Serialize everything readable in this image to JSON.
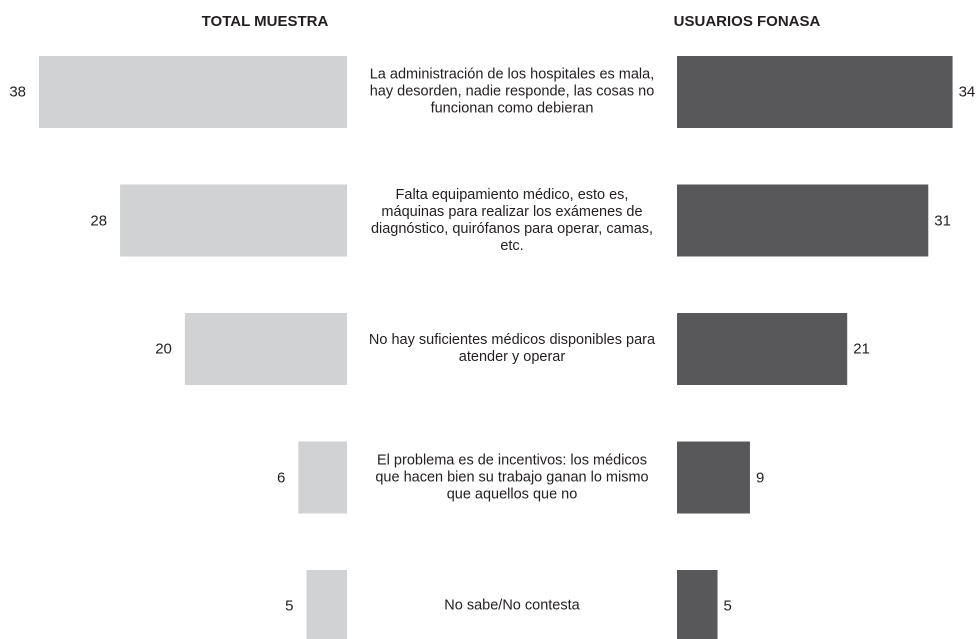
{
  "chart_data": {
    "type": "butterfly",
    "categories": [
      "La administración de los hospitales es mala, hay desorden, nadie responde, las cosas no funcionan como debieran",
      "Falta equipamiento médico, esto es, máquinas para realizar los exámenes de diagnóstico, quirófanos para operar, camas, etc.",
      "No hay suficientes médicos disponibles para atender y operar",
      "El problema es de incentivos: los médicos que hacen bien su trabajo ganan lo mismo que aquellos que no",
      "No sabe/No contesta"
    ],
    "series": [
      {
        "name": "TOTAL MUESTRA",
        "color": "#d1d2d4",
        "values": [
          38,
          28,
          20,
          6,
          5
        ]
      },
      {
        "name": "USUARIOS FONASA",
        "color": "#58585a",
        "values": [
          34,
          31,
          21,
          9,
          5
        ]
      }
    ],
    "xlim": [
      0,
      38
    ]
  }
}
